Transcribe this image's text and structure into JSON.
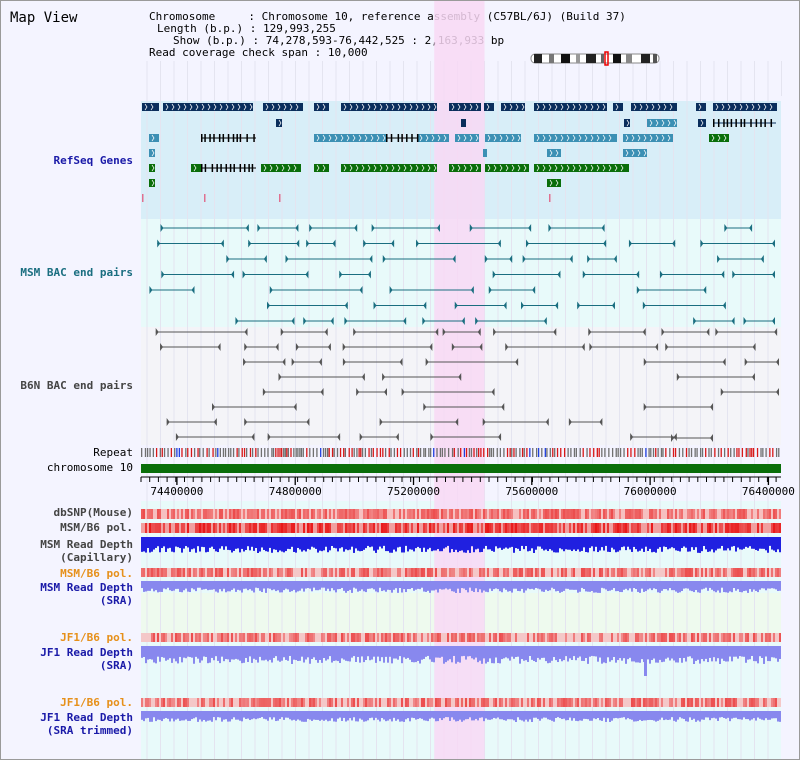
{
  "window": {
    "title": "Map View"
  },
  "info": {
    "chromosome_key": "Chromosome",
    "chromosome_val": "Chromosome 10, reference assembly (C57BL/6J) (Build 37)",
    "length_key": "Length (b.p.)",
    "length_val": "129,993,255",
    "show_key": "Show (b.p.)",
    "show_val": "74,278,593-76,442,525 : 2,163,933 bp",
    "coverage_key": "Read coverage check span",
    "coverage_val": "10,000"
  },
  "tracks": {
    "refseq": "RefSeq Genes",
    "msm_bac": "MSM BAC end pairs",
    "b6n_bac": "B6N BAC end pairs",
    "repeat": "Repeat",
    "chromosome": "chromosome 10",
    "dbsnp": "dbSNP(Mouse)",
    "msm_b6_pol": "MSM/B6 pol.",
    "msm_depth_cap_1": "MSM Read Depth",
    "msm_depth_cap_2": "(Capillary)",
    "msm_b6_pol_sra": "MSM/B6 pol.",
    "msm_depth_sra_1": "MSM Read Depth",
    "msm_depth_sra_2": "(SRA)",
    "jf1_b6_pol": "JF1/B6 pol.",
    "jf1_depth_sra_1": "JF1 Read Depth",
    "jf1_depth_sra_2": "(SRA)",
    "jf1_b6_pol_trim": "JF1/B6 pol.",
    "jf1_depth_trim_1": "JF1 Read Depth",
    "jf1_depth_trim_2": "(SRA trimmed)"
  },
  "axis": {
    "ticks": [
      "74400000",
      "74800000",
      "75200000",
      "75600000",
      "76000000",
      "76400000"
    ],
    "tick_values": [
      74400000,
      74800000,
      75200000,
      75600000,
      76000000,
      76400000
    ],
    "range": [
      74278593,
      76442525
    ]
  },
  "highlight": {
    "start": 75270000,
    "end": 75440000
  },
  "colors": {
    "refseq_bg": "#d8eef8",
    "bac_bg": "#e8fafa",
    "highlight": "#f8d8f4",
    "gene_navy": "#0a2e5c",
    "gene_teal": "#3c90b4",
    "gene_green": "#0a6e0a",
    "bac_teal": "#1a6e80",
    "bac_gray": "#555555",
    "chromosome": "#0a6e0a",
    "depth_blue": "#2020e0",
    "depth_light": "#8888ee"
  }
}
